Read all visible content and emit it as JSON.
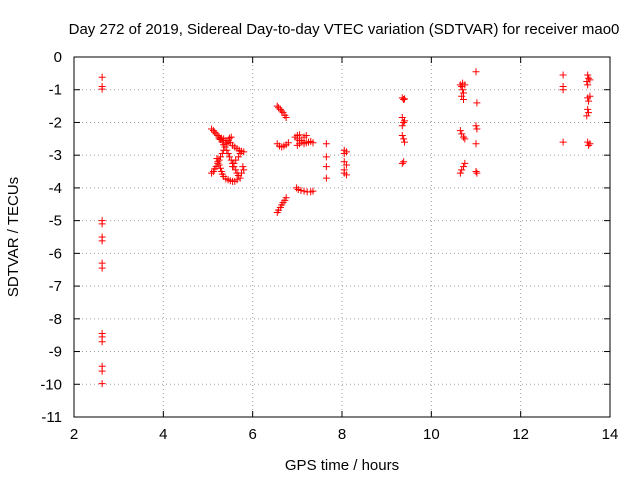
{
  "chart_data": {
    "type": "scatter",
    "title": "Day 272 of 2019, Sidereal Day-to-day VTEC variation (SDTVAR) for receiver mao0",
    "xlabel": "GPS time / hours",
    "ylabel": "SDTVAR / TECUs",
    "xlim": [
      2,
      14
    ],
    "ylim": [
      -11,
      0
    ],
    "xticks": [
      2,
      4,
      6,
      8,
      10,
      12,
      14
    ],
    "yticks": [
      0,
      -1,
      -2,
      -3,
      -4,
      -5,
      -6,
      -7,
      -8,
      -9,
      -10,
      -11
    ],
    "grid": true,
    "marker": "plus",
    "color": "#ff0000",
    "series": [
      {
        "points": [
          [
            2.63,
            -0.62
          ],
          [
            2.63,
            -0.9
          ],
          [
            2.63,
            -0.98
          ],
          [
            2.63,
            -5.0
          ],
          [
            2.63,
            -5.1
          ],
          [
            2.63,
            -5.5
          ],
          [
            2.63,
            -5.62
          ],
          [
            2.63,
            -6.3
          ],
          [
            2.63,
            -6.45
          ],
          [
            2.63,
            -8.45
          ],
          [
            2.63,
            -8.55
          ],
          [
            2.63,
            -8.7
          ],
          [
            2.63,
            -9.45
          ],
          [
            2.63,
            -9.6
          ],
          [
            2.63,
            -9.98
          ],
          [
            5.08,
            -2.2
          ],
          [
            5.12,
            -2.25
          ],
          [
            5.15,
            -2.3
          ],
          [
            5.18,
            -2.35
          ],
          [
            5.22,
            -2.4
          ],
          [
            5.25,
            -2.45
          ],
          [
            5.28,
            -2.52
          ],
          [
            5.32,
            -2.6
          ],
          [
            5.35,
            -2.68
          ],
          [
            5.38,
            -2.75
          ],
          [
            5.42,
            -2.85
          ],
          [
            5.45,
            -2.95
          ],
          [
            5.48,
            -3.05
          ],
          [
            5.52,
            -3.15
          ],
          [
            5.55,
            -3.25
          ],
          [
            5.58,
            -3.35
          ],
          [
            5.62,
            -3.45
          ],
          [
            5.65,
            -3.55
          ],
          [
            5.68,
            -3.62
          ],
          [
            5.72,
            -3.7
          ],
          [
            5.08,
            -3.55
          ],
          [
            5.12,
            -3.5
          ],
          [
            5.15,
            -3.42
          ],
          [
            5.18,
            -3.35
          ],
          [
            5.22,
            -3.25
          ],
          [
            5.25,
            -3.15
          ],
          [
            5.28,
            -3.05
          ],
          [
            5.32,
            -2.95
          ],
          [
            5.35,
            -2.85
          ],
          [
            5.38,
            -2.75
          ],
          [
            5.42,
            -2.65
          ],
          [
            5.45,
            -2.55
          ],
          [
            5.48,
            -2.48
          ],
          [
            5.52,
            -2.45
          ],
          [
            5.2,
            -3.1
          ],
          [
            5.22,
            -3.2
          ],
          [
            5.25,
            -3.3
          ],
          [
            5.28,
            -3.4
          ],
          [
            5.3,
            -3.5
          ],
          [
            5.32,
            -3.58
          ],
          [
            5.35,
            -3.65
          ],
          [
            5.4,
            -3.72
          ],
          [
            5.45,
            -3.75
          ],
          [
            5.5,
            -3.78
          ],
          [
            5.55,
            -3.8
          ],
          [
            5.6,
            -3.8
          ],
          [
            5.65,
            -3.75
          ],
          [
            5.55,
            -2.7
          ],
          [
            5.6,
            -2.75
          ],
          [
            5.65,
            -2.8
          ],
          [
            5.7,
            -2.85
          ],
          [
            5.75,
            -2.88
          ],
          [
            5.8,
            -2.9
          ],
          [
            5.72,
            -2.95
          ],
          [
            5.68,
            -3.05
          ],
          [
            5.62,
            -3.15
          ],
          [
            5.58,
            -3.25
          ],
          [
            5.55,
            -3.35
          ],
          [
            5.25,
            -2.5
          ],
          [
            5.3,
            -2.48
          ],
          [
            5.35,
            -2.5
          ],
          [
            5.4,
            -2.55
          ],
          [
            5.45,
            -2.6
          ],
          [
            5.5,
            -2.62
          ],
          [
            5.75,
            -3.55
          ],
          [
            5.8,
            -3.45
          ],
          [
            5.78,
            -3.35
          ],
          [
            6.55,
            -1.5
          ],
          [
            6.58,
            -1.55
          ],
          [
            6.62,
            -1.6
          ],
          [
            6.65,
            -1.65
          ],
          [
            6.68,
            -1.7
          ],
          [
            6.72,
            -1.78
          ],
          [
            6.75,
            -1.85
          ],
          [
            6.55,
            -2.65
          ],
          [
            6.6,
            -2.72
          ],
          [
            6.65,
            -2.75
          ],
          [
            6.7,
            -2.72
          ],
          [
            6.75,
            -2.68
          ],
          [
            6.8,
            -2.62
          ],
          [
            6.55,
            -4.75
          ],
          [
            6.58,
            -4.68
          ],
          [
            6.62,
            -4.6
          ],
          [
            6.65,
            -4.52
          ],
          [
            6.68,
            -4.45
          ],
          [
            6.72,
            -4.38
          ],
          [
            6.75,
            -4.3
          ],
          [
            6.95,
            -2.45
          ],
          [
            7.0,
            -2.5
          ],
          [
            7.05,
            -2.55
          ],
          [
            7.1,
            -2.6
          ],
          [
            7.15,
            -2.65
          ],
          [
            7.2,
            -2.62
          ],
          [
            7.25,
            -2.6
          ],
          [
            7.3,
            -2.58
          ],
          [
            7.35,
            -2.62
          ],
          [
            7.0,
            -2.7
          ],
          [
            7.05,
            -2.65
          ],
          [
            7.1,
            -2.55
          ],
          [
            7.15,
            -2.45
          ],
          [
            7.2,
            -2.4
          ],
          [
            7.0,
            -2.4
          ],
          [
            7.05,
            -2.38
          ],
          [
            6.98,
            -4.0
          ],
          [
            7.02,
            -4.05
          ],
          [
            7.08,
            -4.08
          ],
          [
            7.15,
            -4.1
          ],
          [
            7.22,
            -4.12
          ],
          [
            7.3,
            -4.12
          ],
          [
            7.35,
            -4.1
          ],
          [
            7.65,
            -2.65
          ],
          [
            7.65,
            -3.05
          ],
          [
            7.65,
            -3.35
          ],
          [
            7.65,
            -3.7
          ],
          [
            8.05,
            -2.85
          ],
          [
            8.05,
            -2.95
          ],
          [
            8.05,
            -3.2
          ],
          [
            8.05,
            -3.45
          ],
          [
            8.05,
            -3.55
          ],
          [
            8.1,
            -2.9
          ],
          [
            8.1,
            -3.3
          ],
          [
            8.1,
            -3.6
          ],
          [
            9.35,
            -1.25
          ],
          [
            9.4,
            -1.28
          ],
          [
            9.38,
            -1.3
          ],
          [
            9.35,
            -1.85
          ],
          [
            9.38,
            -2.0
          ],
          [
            9.35,
            -2.1
          ],
          [
            9.4,
            -1.95
          ],
          [
            9.35,
            -2.4
          ],
          [
            9.38,
            -2.5
          ],
          [
            9.4,
            -2.6
          ],
          [
            9.35,
            -3.25
          ],
          [
            9.38,
            -3.2
          ],
          [
            10.65,
            -0.85
          ],
          [
            10.68,
            -0.9
          ],
          [
            10.7,
            -1.0
          ],
          [
            10.72,
            -1.1
          ],
          [
            10.68,
            -1.2
          ],
          [
            10.7,
            -0.8
          ],
          [
            10.75,
            -0.85
          ],
          [
            10.72,
            -1.3
          ],
          [
            10.65,
            -2.25
          ],
          [
            10.68,
            -2.35
          ],
          [
            10.72,
            -2.45
          ],
          [
            10.75,
            -2.5
          ],
          [
            10.65,
            -3.55
          ],
          [
            10.68,
            -3.45
          ],
          [
            10.72,
            -3.35
          ],
          [
            10.75,
            -3.25
          ],
          [
            11.0,
            -0.45
          ],
          [
            11.02,
            -1.4
          ],
          [
            11.0,
            -2.1
          ],
          [
            11.02,
            -2.2
          ],
          [
            11.0,
            -2.65
          ],
          [
            11.0,
            -3.5
          ],
          [
            11.02,
            -3.55
          ],
          [
            12.95,
            -0.55
          ],
          [
            12.95,
            -0.9
          ],
          [
            12.95,
            -1.0
          ],
          [
            12.95,
            -2.6
          ],
          [
            13.5,
            -0.55
          ],
          [
            13.52,
            -0.65
          ],
          [
            13.48,
            -0.75
          ],
          [
            13.55,
            -0.7
          ],
          [
            13.5,
            -0.85
          ],
          [
            13.5,
            -1.25
          ],
          [
            13.52,
            -1.35
          ],
          [
            13.55,
            -1.2
          ],
          [
            13.5,
            -1.6
          ],
          [
            13.52,
            -1.7
          ],
          [
            13.48,
            -1.8
          ],
          [
            13.5,
            -2.6
          ],
          [
            13.52,
            -2.7
          ],
          [
            13.55,
            -2.65
          ]
        ]
      }
    ]
  }
}
